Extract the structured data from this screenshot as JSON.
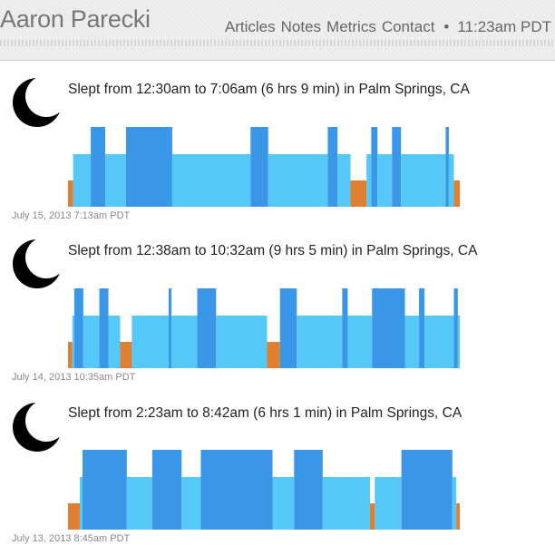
{
  "header": {
    "name": "Aaron Parecki",
    "nav": [
      "Articles",
      "Notes",
      "Metrics",
      "Contact"
    ],
    "separator": "•",
    "time": "11:23am PDT"
  },
  "colors": {
    "light_sleep": "#55c8f8",
    "deep_sleep": "#3a96e6",
    "awake": "#e07f30",
    "moon": "#000000"
  },
  "entries": [
    {
      "title": "Slept from 12:30am to 7:06am (6 hrs 9 min) in Palm Springs, CA",
      "date": "July 15, 2013 7:13am PDT",
      "icon": "moon-icon",
      "segments": [
        {
          "stage": "awake",
          "start": 0.0,
          "end": 0.013
        },
        {
          "stage": "light",
          "start": 0.013,
          "end": 0.058
        },
        {
          "stage": "deep",
          "start": 0.058,
          "end": 0.095
        },
        {
          "stage": "light",
          "start": 0.095,
          "end": 0.148
        },
        {
          "stage": "deep",
          "start": 0.148,
          "end": 0.266
        },
        {
          "stage": "light",
          "start": 0.266,
          "end": 0.466
        },
        {
          "stage": "deep",
          "start": 0.466,
          "end": 0.511
        },
        {
          "stage": "light",
          "start": 0.511,
          "end": 0.663
        },
        {
          "stage": "deep",
          "start": 0.663,
          "end": 0.688
        },
        {
          "stage": "light",
          "start": 0.688,
          "end": 0.721
        },
        {
          "stage": "awake",
          "start": 0.721,
          "end": 0.762
        },
        {
          "stage": "light",
          "start": 0.762,
          "end": 0.774
        },
        {
          "stage": "deep",
          "start": 0.774,
          "end": 0.79
        },
        {
          "stage": "light",
          "start": 0.79,
          "end": 0.827
        },
        {
          "stage": "deep",
          "start": 0.827,
          "end": 0.85
        },
        {
          "stage": "light",
          "start": 0.85,
          "end": 0.964
        },
        {
          "stage": "deep",
          "start": 0.964,
          "end": 0.972
        },
        {
          "stage": "light",
          "start": 0.972,
          "end": 0.985
        },
        {
          "stage": "awake",
          "start": 0.985,
          "end": 1.0
        }
      ]
    },
    {
      "title": "Slept from 12:38am to 10:32am (9 hrs 5 min) in Palm Springs, CA",
      "date": "July 14, 2013 10:35am PDT",
      "icon": "moon-icon",
      "segments": [
        {
          "stage": "awake",
          "start": 0.0,
          "end": 0.011
        },
        {
          "stage": "light",
          "start": 0.011,
          "end": 0.016
        },
        {
          "stage": "deep",
          "start": 0.016,
          "end": 0.039
        },
        {
          "stage": "light",
          "start": 0.039,
          "end": 0.08
        },
        {
          "stage": "deep",
          "start": 0.08,
          "end": 0.103
        },
        {
          "stage": "light",
          "start": 0.103,
          "end": 0.133
        },
        {
          "stage": "awake",
          "start": 0.133,
          "end": 0.163
        },
        {
          "stage": "light",
          "start": 0.163,
          "end": 0.257
        },
        {
          "stage": "deep",
          "start": 0.257,
          "end": 0.264
        },
        {
          "stage": "light",
          "start": 0.264,
          "end": 0.33
        },
        {
          "stage": "deep",
          "start": 0.33,
          "end": 0.378
        },
        {
          "stage": "light",
          "start": 0.378,
          "end": 0.508
        },
        {
          "stage": "awake",
          "start": 0.508,
          "end": 0.541
        },
        {
          "stage": "deep",
          "start": 0.541,
          "end": 0.584
        },
        {
          "stage": "light",
          "start": 0.584,
          "end": 0.7
        },
        {
          "stage": "deep",
          "start": 0.7,
          "end": 0.714
        },
        {
          "stage": "light",
          "start": 0.714,
          "end": 0.776
        },
        {
          "stage": "deep",
          "start": 0.776,
          "end": 0.86
        },
        {
          "stage": "light",
          "start": 0.86,
          "end": 0.896
        },
        {
          "stage": "deep",
          "start": 0.896,
          "end": 0.91
        },
        {
          "stage": "light",
          "start": 0.91,
          "end": 0.985
        },
        {
          "stage": "deep",
          "start": 0.985,
          "end": 0.995
        },
        {
          "stage": "light",
          "start": 0.995,
          "end": 1.0
        }
      ]
    },
    {
      "title": "Slept from 2:23am to 8:42am (6 hrs 1 min) in Palm Springs, CA",
      "date": "July 13, 2013 8:45am PDT",
      "icon": "moon-icon",
      "segments": [
        {
          "stage": "awake",
          "start": 0.0,
          "end": 0.03
        },
        {
          "stage": "light",
          "start": 0.03,
          "end": 0.037
        },
        {
          "stage": "deep",
          "start": 0.037,
          "end": 0.15
        },
        {
          "stage": "light",
          "start": 0.15,
          "end": 0.215
        },
        {
          "stage": "deep",
          "start": 0.215,
          "end": 0.29
        },
        {
          "stage": "light",
          "start": 0.29,
          "end": 0.339
        },
        {
          "stage": "deep",
          "start": 0.339,
          "end": 0.522
        },
        {
          "stage": "light",
          "start": 0.522,
          "end": 0.577
        },
        {
          "stage": "deep",
          "start": 0.577,
          "end": 0.65
        },
        {
          "stage": "light",
          "start": 0.65,
          "end": 0.771
        },
        {
          "stage": "awake",
          "start": 0.771,
          "end": 0.783
        },
        {
          "stage": "light",
          "start": 0.783,
          "end": 0.851
        },
        {
          "stage": "deep",
          "start": 0.851,
          "end": 0.981
        },
        {
          "stage": "light",
          "start": 0.981,
          "end": 0.991
        },
        {
          "stage": "awake",
          "start": 0.991,
          "end": 1.0
        }
      ]
    }
  ]
}
